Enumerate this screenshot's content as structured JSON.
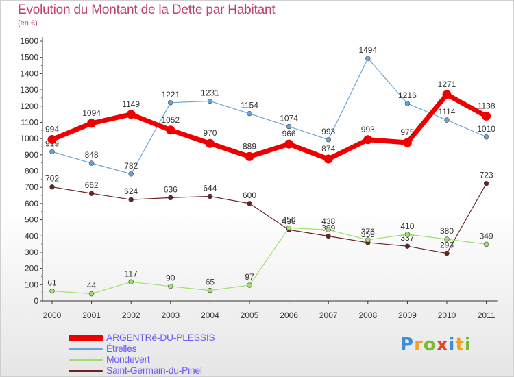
{
  "title": "Evolution du Montant de la Dette par Habitant",
  "subtitle": "(en €)",
  "logo": {
    "text": "Proxiti",
    "letters": [
      {
        "ch": "P",
        "color": "#3b8fd6"
      },
      {
        "ch": "r",
        "color": "#f2a023"
      },
      {
        "ch": "o",
        "color": "#7dbb2c"
      },
      {
        "ch": "x",
        "color": "#e0442c"
      },
      {
        "ch": "i",
        "color": "#3b8fd6"
      },
      {
        "ch": "t",
        "color": "#f2a023"
      },
      {
        "ch": "i",
        "color": "#7dbb2c"
      }
    ]
  },
  "chart_data": {
    "type": "line",
    "x": [
      "2000",
      "2001",
      "2002",
      "2003",
      "2004",
      "2005",
      "2006",
      "2007",
      "2008",
      "2009",
      "2010",
      "2011"
    ],
    "ylim": [
      0,
      1600
    ],
    "yticks": [
      0,
      100,
      200,
      300,
      400,
      500,
      600,
      700,
      800,
      900,
      1000,
      1100,
      1200,
      1300,
      1400,
      1500,
      1600
    ],
    "grid": false,
    "legend_position": "bottom-left",
    "series": [
      {
        "name": "Saint-Germain-du-Pinel",
        "color": "#6b2227",
        "width": 1.2,
        "values": [
          702,
          662,
          624,
          636,
          644,
          600,
          438,
          399,
          359,
          337,
          293,
          723
        ]
      },
      {
        "name": "Mondevert",
        "color": "#9ee070",
        "width": 1.2,
        "values": [
          61,
          44,
          117,
          90,
          65,
          97,
          450,
          438,
          376,
          410,
          380,
          349
        ]
      },
      {
        "name": "Étrelles",
        "color": "#6aa3d8",
        "width": 1.2,
        "values": [
          919,
          848,
          782,
          1221,
          1231,
          1154,
          1074,
          993,
          1494,
          1216,
          1114,
          1010
        ]
      },
      {
        "name": "ARGENTRé-DU-PLESSIS",
        "color": "#ee0000",
        "width": 7,
        "values": [
          994,
          1094,
          1149,
          1052,
          970,
          889,
          966,
          874,
          993,
          975,
          1271,
          1138
        ]
      }
    ]
  }
}
